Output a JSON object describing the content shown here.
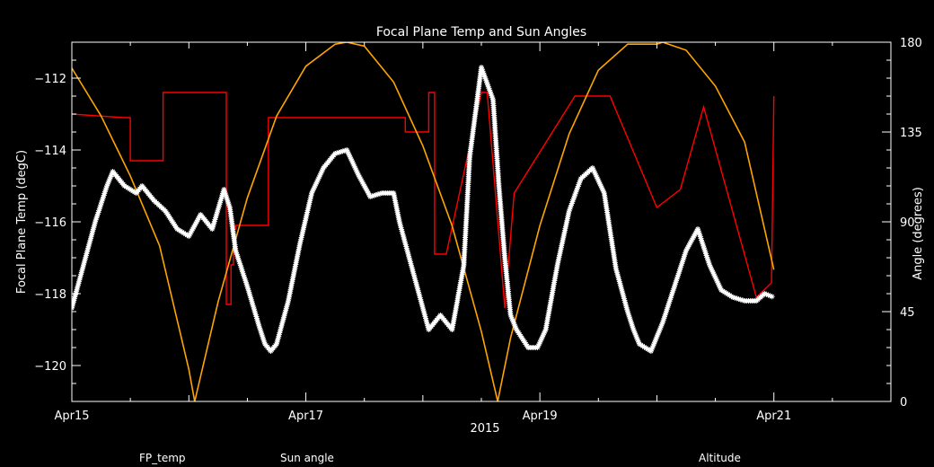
{
  "chart_data": {
    "type": "line",
    "title": "Focal Plane Temp and Sun Angles",
    "xlabel": "2015",
    "ylabel": "Focal Plane Temp (degC)",
    "y2label": "Angle (degrees)",
    "x_range_days": [
      0,
      7
    ],
    "x_ticks": [
      {
        "day": 0,
        "label": "Apr15"
      },
      {
        "day": 2,
        "label": "Apr17"
      },
      {
        "day": 4,
        "label": "Apr19"
      },
      {
        "day": 6,
        "label": "Apr21"
      }
    ],
    "ylim": [
      -121,
      -111
    ],
    "y_ticks": [
      {
        "v": -112,
        "label": "−112"
      },
      {
        "v": -114,
        "label": "−114"
      },
      {
        "v": -116,
        "label": "−116"
      },
      {
        "v": -118,
        "label": "−118"
      },
      {
        "v": -120,
        "label": "−120"
      }
    ],
    "y2lim": [
      0,
      180
    ],
    "y2_ticks": [
      {
        "v": 0,
        "label": "0"
      },
      {
        "v": 45,
        "label": "45"
      },
      {
        "v": 90,
        "label": "90"
      },
      {
        "v": 135,
        "label": "135"
      },
      {
        "v": 180,
        "label": "180"
      }
    ],
    "legend": [
      {
        "label": "FP_temp",
        "color": "#ffffff"
      },
      {
        "label": "Sun angle",
        "color": "#ff0000"
      },
      {
        "label": "Altitude",
        "color": "#ffa500"
      }
    ],
    "series": [
      {
        "name": "FP_temp",
        "axis": "left",
        "color": "#ffffff",
        "x": [
          0.0,
          0.1,
          0.2,
          0.3,
          0.35,
          0.45,
          0.55,
          0.6,
          0.7,
          0.8,
          0.9,
          1.0,
          1.1,
          1.2,
          1.3,
          1.35,
          1.4,
          1.5,
          1.6,
          1.65,
          1.7,
          1.75,
          1.85,
          1.95,
          2.05,
          2.15,
          2.25,
          2.35,
          2.45,
          2.55,
          2.65,
          2.75,
          2.8,
          2.95,
          3.05,
          3.15,
          3.25,
          3.35,
          3.4,
          3.5,
          3.6,
          3.65,
          3.7,
          3.75,
          3.8,
          3.9,
          3.98,
          4.05,
          4.15,
          4.25,
          4.35,
          4.45,
          4.55,
          4.65,
          4.75,
          4.8,
          4.85,
          4.95,
          5.05,
          5.15,
          5.25,
          5.35,
          5.45,
          5.55,
          5.65,
          5.75,
          5.85,
          5.92,
          6.0
        ],
        "values": [
          -118.4,
          -117.2,
          -116.0,
          -115.0,
          -114.6,
          -115.0,
          -115.2,
          -115.0,
          -115.4,
          -115.7,
          -116.2,
          -116.4,
          -115.8,
          -116.2,
          -115.1,
          -115.6,
          -116.8,
          -117.8,
          -118.9,
          -119.4,
          -119.6,
          -119.4,
          -118.2,
          -116.6,
          -115.2,
          -114.5,
          -114.1,
          -114.0,
          -114.7,
          -115.3,
          -115.2,
          -115.2,
          -116.0,
          -117.8,
          -119.0,
          -118.6,
          -119.0,
          -117.2,
          -114.2,
          -111.7,
          -112.6,
          -115.0,
          -117.0,
          -118.6,
          -119.0,
          -119.5,
          -119.5,
          -119.0,
          -117.2,
          -115.7,
          -114.8,
          -114.5,
          -115.2,
          -117.3,
          -118.5,
          -119.0,
          -119.4,
          -119.6,
          -118.8,
          -117.8,
          -116.8,
          -116.2,
          -117.2,
          -117.9,
          -118.1,
          -118.2,
          -118.2,
          -118.0,
          -118.1
        ]
      },
      {
        "name": "Sun angle",
        "axis": "left",
        "color": "#ff0000",
        "x": [
          0.0,
          0.45,
          0.5,
          0.5,
          0.78,
          0.78,
          1.32,
          1.32,
          1.32,
          1.36,
          1.36,
          1.38,
          1.38,
          1.4,
          1.4,
          1.4,
          1.68,
          1.68,
          2.0,
          2.0,
          2.85,
          2.85,
          3.05,
          3.05,
          3.1,
          3.1,
          3.12,
          3.12,
          3.2,
          3.2,
          3.5,
          3.5,
          3.55,
          3.55,
          3.7,
          3.7,
          3.78,
          3.78,
          4.3,
          4.3,
          4.6,
          4.6,
          5.0,
          5.0,
          5.2,
          5.2,
          5.4,
          5.4,
          5.85,
          5.85,
          5.98,
          5.98,
          6.0,
          6.0
        ],
        "values": [
          -113.0,
          -113.1,
          -113.1,
          -114.3,
          -114.3,
          -112.4,
          -112.4,
          -112.4,
          -118.3,
          -118.3,
          -117.2,
          -117.2,
          -116.2,
          -116.2,
          -116.1,
          -116.1,
          -116.1,
          -113.1,
          -113.1,
          -113.1,
          -113.1,
          -113.5,
          -113.5,
          -112.4,
          -112.4,
          -116.9,
          -116.9,
          -116.9,
          -116.9,
          -116.9,
          -112.4,
          -112.4,
          -112.4,
          -112.4,
          -118.4,
          -118.4,
          -115.2,
          -115.2,
          -112.5,
          -112.5,
          -112.5,
          -112.5,
          -115.6,
          -115.6,
          -115.1,
          -115.1,
          -112.8,
          -112.8,
          -118.1,
          -118.1,
          -117.7,
          -117.7,
          -112.5,
          -112.5
        ]
      },
      {
        "name": "Altitude",
        "axis": "right",
        "color": "#ffa500",
        "x": [
          0.0,
          0.25,
          0.5,
          0.75,
          1.0,
          1.05,
          1.25,
          1.5,
          1.75,
          2.0,
          2.25,
          2.35,
          2.5,
          2.75,
          3.0,
          3.25,
          3.5,
          3.64,
          3.75,
          4.0,
          4.25,
          4.5,
          4.75,
          5.0,
          5.05,
          5.25,
          5.5,
          5.75,
          6.0
        ],
        "values": [
          167,
          143,
          113,
          78,
          16,
          0,
          50,
          102,
          143,
          168,
          179,
          180,
          178,
          160,
          128,
          88,
          35,
          0,
          32,
          88,
          134,
          166,
          179,
          179,
          180,
          176,
          158,
          130,
          66
        ]
      }
    ]
  }
}
